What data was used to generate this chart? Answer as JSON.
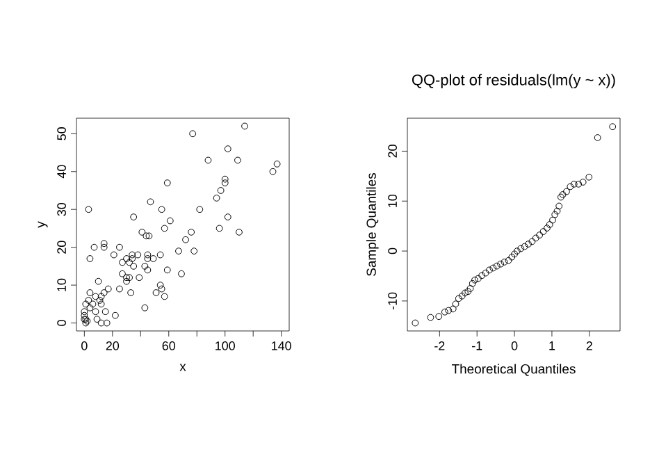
{
  "chart_data": [
    {
      "type": "scatter",
      "xlabel": "x",
      "ylabel": "y",
      "marker": "circle",
      "xlim": [
        -5.6,
        145.6
      ],
      "ylim": [
        -2.1,
        54.1
      ],
      "xticks": [
        0,
        20,
        {
          "value": 40,
          "label": null
        },
        60,
        {
          "value": 80,
          "label": null
        },
        100,
        {
          "value": 120,
          "label": null
        },
        140
      ],
      "yticks": [
        0,
        10,
        20,
        30,
        40,
        50
      ],
      "series": [
        {
          "color": "#000000",
          "x": [
            77,
            114,
            102,
            88,
            109,
            137,
            134,
            100,
            100,
            97,
            94,
            59,
            3,
            47,
            55,
            82,
            35,
            102,
            96,
            110,
            76,
            72,
            41,
            46,
            44,
            61,
            57,
            4,
            7,
            14,
            14,
            25,
            21,
            67,
            78,
            34,
            38,
            45,
            54,
            49,
            30,
            34,
            27,
            32,
            35,
            45,
            43,
            45,
            59,
            69,
            39,
            27,
            30,
            32,
            30,
            10,
            54,
            55,
            51,
            57,
            33,
            25,
            17,
            14,
            4,
            8,
            12,
            3,
            11,
            12,
            6,
            1,
            43,
            4,
            15,
            8,
            0,
            0,
            0,
            1,
            22,
            9,
            12,
            16,
            1,
            2
          ],
          "values": [
            50,
            52,
            46,
            43,
            43,
            42,
            40,
            38,
            37,
            35,
            33,
            37,
            30,
            32,
            30,
            30,
            28,
            28,
            25,
            24,
            24,
            22,
            24,
            23,
            23,
            27,
            25,
            17,
            20,
            21,
            20,
            20,
            18,
            19,
            19,
            18,
            18,
            18,
            18,
            17,
            17,
            17,
            16,
            16,
            15,
            17,
            15,
            14,
            14,
            13,
            12,
            13,
            12,
            12,
            11,
            11,
            10,
            9,
            8,
            7,
            8,
            9,
            9,
            8,
            8,
            7,
            7,
            6,
            6,
            5,
            5,
            5,
            4,
            4,
            3,
            3,
            3,
            2,
            1,
            1,
            2,
            1,
            0,
            0,
            0,
            0.5
          ]
        }
      ]
    },
    {
      "type": "scatter",
      "title": "QQ-plot of residuals(lm(y ~ x))",
      "xlabel": "Theoretical Quantiles",
      "ylabel": "Sample Quantiles",
      "marker": "circle",
      "xlim": [
        -2.86,
        2.82
      ],
      "ylim": [
        -16.0,
        26.6
      ],
      "xticks": [
        -2,
        -1,
        0,
        1,
        2
      ],
      "yticks": [
        -10,
        0,
        10,
        20
      ],
      "series": [
        {
          "color": "#000000",
          "x": [
            -2.65,
            -2.24,
            -2.02,
            -1.86,
            -1.76,
            -1.64,
            -1.57,
            -1.49,
            -1.4,
            -1.32,
            -1.24,
            -1.18,
            -1.12,
            -1.06,
            -0.97,
            -0.87,
            -0.77,
            -0.67,
            -0.57,
            -0.47,
            -0.37,
            -0.27,
            -0.16,
            -0.07,
            0,
            0.07,
            0.17,
            0.27,
            0.37,
            0.47,
            0.57,
            0.67,
            0.77,
            0.87,
            0.94,
            1.02,
            1.08,
            1.14,
            1.19,
            1.24,
            1.29,
            1.39,
            1.49,
            1.59,
            1.71,
            1.83,
            1.99,
            2.22,
            2.62
          ],
          "values": [
            -14.4,
            -13.3,
            -13.1,
            -12.2,
            -11.9,
            -11.6,
            -10.6,
            -9.5,
            -9.0,
            -8.4,
            -8.1,
            -7.5,
            -6.5,
            -5.8,
            -5.5,
            -4.9,
            -4.4,
            -3.8,
            -3.4,
            -3.0,
            -2.6,
            -2.2,
            -1.9,
            -1.2,
            -0.6,
            0,
            0.5,
            0.9,
            1.4,
            1.9,
            2.6,
            3.2,
            3.9,
            4.6,
            5.3,
            6.2,
            7.3,
            8.0,
            9.0,
            10.8,
            11.3,
            11.9,
            12.9,
            13.4,
            13.4,
            13.8,
            14.8,
            22.7,
            24.9
          ]
        }
      ]
    }
  ]
}
